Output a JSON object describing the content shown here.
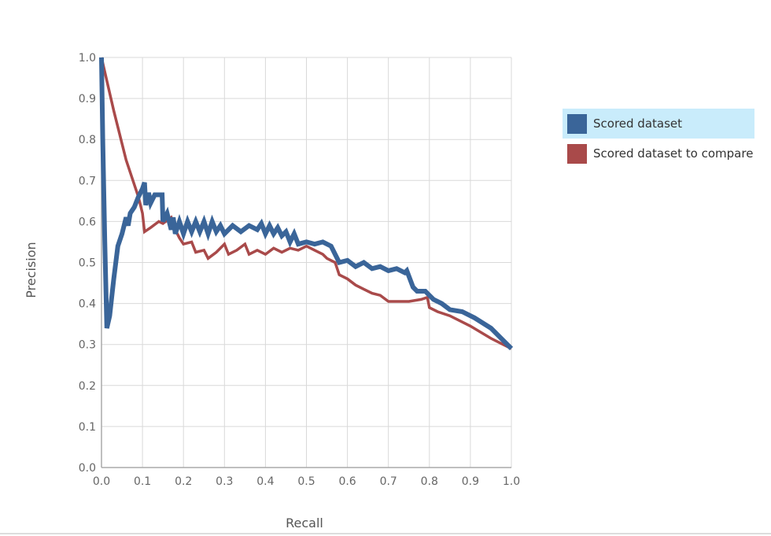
{
  "chart_data": {
    "type": "line",
    "xlabel": "Recall",
    "ylabel": "Precision",
    "xlim": [
      0,
      1
    ],
    "ylim": [
      0,
      1
    ],
    "x_ticks": [
      "0.0",
      "0.1",
      "0.2",
      "0.3",
      "0.4",
      "0.5",
      "0.6",
      "0.7",
      "0.8",
      "0.9",
      "1.0"
    ],
    "y_ticks": [
      "0.0",
      "0.1",
      "0.2",
      "0.3",
      "0.4",
      "0.5",
      "0.6",
      "0.7",
      "0.8",
      "0.9",
      "1.0"
    ],
    "grid": true,
    "legend_position": "right",
    "series": [
      {
        "name": "Scored dataset",
        "color": "#3a6599",
        "points": [
          [
            0.0,
            1.0
          ],
          [
            0.003,
            0.8
          ],
          [
            0.008,
            0.55
          ],
          [
            0.013,
            0.34
          ],
          [
            0.02,
            0.37
          ],
          [
            0.03,
            0.46
          ],
          [
            0.04,
            0.54
          ],
          [
            0.05,
            0.57
          ],
          [
            0.06,
            0.61
          ],
          [
            0.065,
            0.59
          ],
          [
            0.07,
            0.62
          ],
          [
            0.08,
            0.635
          ],
          [
            0.09,
            0.66
          ],
          [
            0.1,
            0.68
          ],
          [
            0.105,
            0.695
          ],
          [
            0.108,
            0.64
          ],
          [
            0.115,
            0.67
          ],
          [
            0.12,
            0.645
          ],
          [
            0.13,
            0.665
          ],
          [
            0.14,
            0.665
          ],
          [
            0.148,
            0.665
          ],
          [
            0.15,
            0.6
          ],
          [
            0.16,
            0.62
          ],
          [
            0.17,
            0.58
          ],
          [
            0.175,
            0.61
          ],
          [
            0.18,
            0.57
          ],
          [
            0.19,
            0.6
          ],
          [
            0.2,
            0.57
          ],
          [
            0.21,
            0.6
          ],
          [
            0.22,
            0.575
          ],
          [
            0.23,
            0.6
          ],
          [
            0.24,
            0.575
          ],
          [
            0.25,
            0.6
          ],
          [
            0.26,
            0.57
          ],
          [
            0.27,
            0.6
          ],
          [
            0.28,
            0.575
          ],
          [
            0.29,
            0.59
          ],
          [
            0.3,
            0.57
          ],
          [
            0.32,
            0.59
          ],
          [
            0.34,
            0.575
          ],
          [
            0.36,
            0.59
          ],
          [
            0.38,
            0.58
          ],
          [
            0.39,
            0.595
          ],
          [
            0.4,
            0.57
          ],
          [
            0.41,
            0.59
          ],
          [
            0.42,
            0.57
          ],
          [
            0.43,
            0.585
          ],
          [
            0.44,
            0.565
          ],
          [
            0.45,
            0.575
          ],
          [
            0.46,
            0.55
          ],
          [
            0.47,
            0.57
          ],
          [
            0.48,
            0.545
          ],
          [
            0.5,
            0.55
          ],
          [
            0.52,
            0.545
          ],
          [
            0.54,
            0.55
          ],
          [
            0.56,
            0.54
          ],
          [
            0.57,
            0.52
          ],
          [
            0.58,
            0.5
          ],
          [
            0.6,
            0.505
          ],
          [
            0.62,
            0.49
          ],
          [
            0.64,
            0.5
          ],
          [
            0.66,
            0.485
          ],
          [
            0.68,
            0.49
          ],
          [
            0.7,
            0.48
          ],
          [
            0.72,
            0.485
          ],
          [
            0.74,
            0.475
          ],
          [
            0.745,
            0.48
          ],
          [
            0.76,
            0.44
          ],
          [
            0.77,
            0.43
          ],
          [
            0.79,
            0.43
          ],
          [
            0.8,
            0.42
          ],
          [
            0.81,
            0.41
          ],
          [
            0.83,
            0.4
          ],
          [
            0.85,
            0.385
          ],
          [
            0.88,
            0.38
          ],
          [
            0.91,
            0.365
          ],
          [
            0.95,
            0.34
          ],
          [
            1.0,
            0.29
          ]
        ]
      },
      {
        "name": "Scored dataset to compare",
        "color": "#a94a4a",
        "points": [
          [
            0.0,
            1.0
          ],
          [
            0.03,
            0.87
          ],
          [
            0.06,
            0.75
          ],
          [
            0.09,
            0.66
          ],
          [
            0.1,
            0.62
          ],
          [
            0.105,
            0.575
          ],
          [
            0.12,
            0.585
          ],
          [
            0.14,
            0.6
          ],
          [
            0.15,
            0.595
          ],
          [
            0.17,
            0.61
          ],
          [
            0.18,
            0.58
          ],
          [
            0.19,
            0.56
          ],
          [
            0.2,
            0.545
          ],
          [
            0.22,
            0.55
          ],
          [
            0.23,
            0.525
          ],
          [
            0.25,
            0.53
          ],
          [
            0.26,
            0.51
          ],
          [
            0.28,
            0.525
          ],
          [
            0.3,
            0.545
          ],
          [
            0.31,
            0.52
          ],
          [
            0.33,
            0.53
          ],
          [
            0.35,
            0.545
          ],
          [
            0.36,
            0.52
          ],
          [
            0.38,
            0.53
          ],
          [
            0.4,
            0.52
          ],
          [
            0.42,
            0.535
          ],
          [
            0.44,
            0.525
          ],
          [
            0.46,
            0.535
          ],
          [
            0.48,
            0.53
          ],
          [
            0.5,
            0.54
          ],
          [
            0.52,
            0.53
          ],
          [
            0.54,
            0.52
          ],
          [
            0.55,
            0.51
          ],
          [
            0.57,
            0.5
          ],
          [
            0.58,
            0.47
          ],
          [
            0.6,
            0.46
          ],
          [
            0.62,
            0.445
          ],
          [
            0.64,
            0.435
          ],
          [
            0.66,
            0.425
          ],
          [
            0.68,
            0.42
          ],
          [
            0.7,
            0.405
          ],
          [
            0.72,
            0.405
          ],
          [
            0.75,
            0.405
          ],
          [
            0.78,
            0.41
          ],
          [
            0.795,
            0.415
          ],
          [
            0.8,
            0.39
          ],
          [
            0.82,
            0.38
          ],
          [
            0.85,
            0.37
          ],
          [
            0.9,
            0.345
          ],
          [
            0.95,
            0.315
          ],
          [
            1.0,
            0.29
          ]
        ]
      }
    ]
  },
  "legend": {
    "items": [
      {
        "label": "Scored dataset",
        "color": "#3a6599",
        "selected": true
      },
      {
        "label": "Scored dataset to compare",
        "color": "#a94a4a",
        "selected": false
      }
    ]
  }
}
